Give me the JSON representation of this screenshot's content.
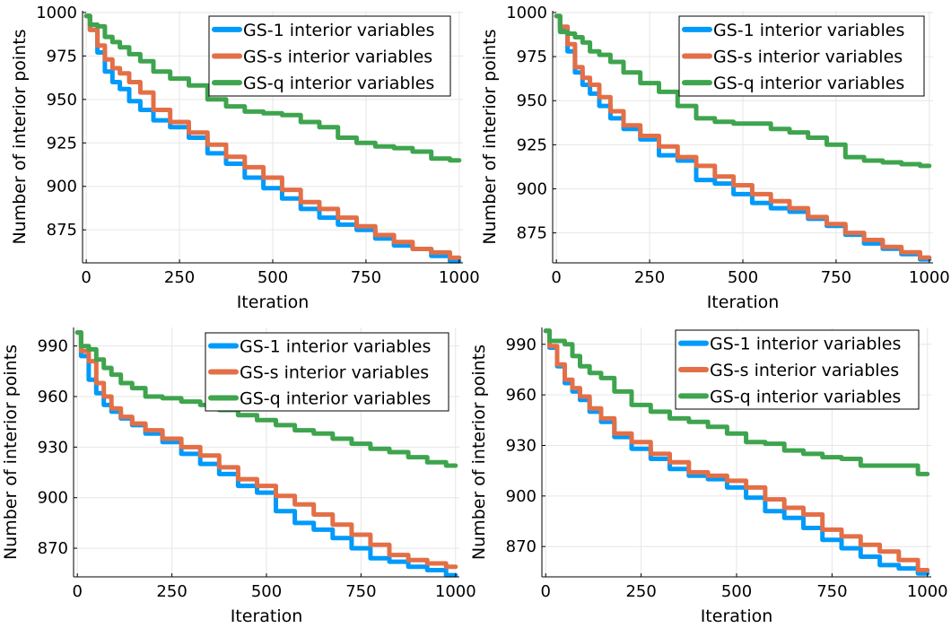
{
  "chart_data": [
    {
      "type": "line",
      "title": "",
      "xlabel": "Iteration",
      "ylabel": "Number of interior points",
      "xlim": [
        -10,
        1010
      ],
      "ylim": [
        856,
        1001
      ],
      "xticks": [
        0,
        250,
        500,
        750,
        1000
      ],
      "xtick_labels": [
        "0",
        "250",
        "500",
        "750",
        "1000"
      ],
      "yticks": [
        875,
        900,
        925,
        950,
        975,
        1000
      ],
      "ytick_labels": [
        "875",
        "900",
        "925",
        "950",
        "975",
        "1000"
      ],
      "grid": true,
      "legend_position": "top-right",
      "series": [
        {
          "name": "GS-1 interior variables",
          "color": "#009AFA",
          "x": [
            0,
            20,
            40,
            60,
            80,
            100,
            130,
            160,
            200,
            250,
            300,
            350,
            400,
            450,
            500,
            550,
            600,
            650,
            700,
            750,
            800,
            850,
            900,
            950,
            1000
          ],
          "y": [
            998,
            990,
            977,
            966,
            960,
            956,
            949,
            944,
            938,
            934,
            928,
            919,
            913,
            905,
            899,
            893,
            887,
            882,
            878,
            875,
            870,
            866,
            864,
            860,
            857
          ]
        },
        {
          "name": "GS-s interior variables",
          "color": "#E36F47",
          "x": [
            0,
            20,
            40,
            60,
            80,
            100,
            130,
            160,
            200,
            250,
            300,
            350,
            400,
            450,
            500,
            550,
            600,
            650,
            700,
            750,
            800,
            850,
            900,
            950,
            1000
          ],
          "y": [
            998,
            990,
            981,
            973,
            968,
            965,
            960,
            954,
            944,
            937,
            931,
            924,
            917,
            911,
            905,
            898,
            891,
            887,
            882,
            877,
            872,
            868,
            864,
            862,
            859
          ]
        },
        {
          "name": "GS-q interior variables",
          "color": "#3EA44E",
          "x": [
            0,
            20,
            40,
            60,
            80,
            100,
            130,
            160,
            200,
            250,
            300,
            350,
            400,
            450,
            500,
            550,
            600,
            650,
            700,
            750,
            800,
            850,
            900,
            950,
            1000
          ],
          "y": [
            998,
            993,
            992,
            986,
            983,
            980,
            976,
            972,
            966,
            962,
            958,
            950,
            946,
            943,
            942,
            941,
            937,
            934,
            928,
            925,
            923,
            922,
            920,
            916,
            915
          ]
        }
      ]
    },
    {
      "type": "line",
      "title": "",
      "xlabel": "Iteration",
      "ylabel": "Number of interior points",
      "xlim": [
        -10,
        1010
      ],
      "ylim": [
        858,
        1001
      ],
      "xticks": [
        0,
        250,
        500,
        750,
        1000
      ],
      "xtick_labels": [
        "0",
        "250",
        "500",
        "750",
        "1000"
      ],
      "yticks": [
        875,
        900,
        925,
        950,
        975,
        1000
      ],
      "ytick_labels": [
        "875",
        "900",
        "925",
        "950",
        "975",
        "1000"
      ],
      "grid": true,
      "legend_position": "top-right",
      "series": [
        {
          "name": "GS-1 interior variables",
          "color": "#009AFA",
          "x": [
            0,
            20,
            40,
            60,
            80,
            100,
            130,
            160,
            200,
            250,
            300,
            350,
            400,
            450,
            500,
            550,
            600,
            650,
            700,
            750,
            800,
            850,
            900,
            950,
            1000
          ],
          "y": [
            998,
            990,
            978,
            966,
            959,
            954,
            947,
            940,
            934,
            928,
            919,
            916,
            905,
            903,
            897,
            892,
            889,
            887,
            883,
            879,
            874,
            869,
            866,
            863,
            860
          ]
        },
        {
          "name": "GS-s interior variables",
          "color": "#E36F47",
          "x": [
            0,
            20,
            40,
            60,
            80,
            100,
            130,
            160,
            200,
            250,
            300,
            350,
            400,
            450,
            500,
            550,
            600,
            650,
            700,
            750,
            800,
            850,
            900,
            950,
            1000
          ],
          "y": [
            998,
            992,
            982,
            969,
            963,
            959,
            952,
            944,
            936,
            930,
            924,
            918,
            913,
            907,
            902,
            897,
            893,
            889,
            884,
            880,
            875,
            871,
            867,
            864,
            861
          ]
        },
        {
          "name": "GS-q interior variables",
          "color": "#3EA44E",
          "x": [
            0,
            20,
            40,
            60,
            80,
            100,
            130,
            160,
            200,
            250,
            300,
            350,
            400,
            450,
            500,
            550,
            600,
            650,
            700,
            750,
            800,
            850,
            900,
            950,
            1000
          ],
          "y": [
            998,
            989,
            988,
            986,
            983,
            978,
            976,
            972,
            966,
            960,
            955,
            947,
            940,
            938,
            937,
            937,
            934,
            932,
            929,
            925,
            918,
            916,
            915,
            914,
            913
          ]
        }
      ]
    },
    {
      "type": "line",
      "title": "",
      "xlabel": "Iteration",
      "ylabel": "Number of interior points",
      "xlim": [
        -10,
        1010
      ],
      "ylim": [
        853,
        1001
      ],
      "xticks": [
        0,
        250,
        500,
        750,
        1000
      ],
      "xtick_labels": [
        "0",
        "250",
        "500",
        "750",
        "1000"
      ],
      "yticks": [
        870,
        900,
        930,
        960,
        990
      ],
      "ytick_labels": [
        "870",
        "900",
        "930",
        "960",
        "990"
      ],
      "grid": true,
      "legend_position": "top-right",
      "series": [
        {
          "name": "GS-1 interior variables",
          "color": "#009AFA",
          "x": [
            0,
            20,
            40,
            60,
            80,
            100,
            130,
            160,
            200,
            250,
            300,
            350,
            400,
            450,
            500,
            550,
            600,
            650,
            700,
            750,
            800,
            850,
            900,
            950,
            1000
          ],
          "y": [
            998,
            984,
            970,
            962,
            955,
            951,
            947,
            943,
            938,
            933,
            926,
            920,
            914,
            907,
            903,
            892,
            885,
            881,
            876,
            870,
            864,
            862,
            859,
            857,
            854
          ]
        },
        {
          "name": "GS-s interior variables",
          "color": "#E36F47",
          "x": [
            0,
            20,
            40,
            60,
            80,
            100,
            130,
            160,
            200,
            250,
            300,
            350,
            400,
            450,
            500,
            550,
            600,
            650,
            700,
            750,
            800,
            850,
            900,
            950,
            1000
          ],
          "y": [
            998,
            987,
            981,
            968,
            960,
            953,
            948,
            944,
            940,
            935,
            930,
            925,
            918,
            911,
            907,
            901,
            896,
            890,
            884,
            878,
            872,
            866,
            863,
            861,
            859
          ]
        },
        {
          "name": "GS-q interior variables",
          "color": "#3EA44E",
          "x": [
            0,
            20,
            40,
            60,
            80,
            100,
            130,
            160,
            200,
            250,
            300,
            350,
            400,
            450,
            500,
            550,
            600,
            650,
            700,
            750,
            800,
            850,
            900,
            950,
            1000
          ],
          "y": [
            998,
            990,
            988,
            982,
            977,
            973,
            968,
            965,
            960,
            959,
            957,
            955,
            952,
            949,
            946,
            943,
            940,
            938,
            935,
            932,
            929,
            927,
            924,
            921,
            919
          ]
        }
      ]
    },
    {
      "type": "line",
      "title": "",
      "xlabel": "Iteration",
      "ylabel": "Number of interior points",
      "xlim": [
        -10,
        1010
      ],
      "ylim": [
        852,
        1000
      ],
      "xticks": [
        0,
        250,
        500,
        750,
        1000
      ],
      "xtick_labels": [
        "0",
        "250",
        "500",
        "750",
        "1000"
      ],
      "yticks": [
        870,
        900,
        930,
        960,
        990
      ],
      "ytick_labels": [
        "870",
        "900",
        "930",
        "960",
        "990"
      ],
      "grid": true,
      "legend_position": "top-right",
      "series": [
        {
          "name": "GS-1 interior variables",
          "color": "#009AFA",
          "x": [
            0,
            20,
            40,
            60,
            80,
            100,
            130,
            160,
            200,
            250,
            300,
            350,
            400,
            450,
            500,
            550,
            600,
            650,
            700,
            750,
            800,
            850,
            900,
            950,
            1000
          ],
          "y": [
            998,
            988,
            977,
            967,
            962,
            957,
            950,
            944,
            935,
            928,
            922,
            916,
            912,
            910,
            905,
            899,
            891,
            887,
            881,
            874,
            869,
            864,
            859,
            857,
            854
          ]
        },
        {
          "name": "GS-s interior variables",
          "color": "#E36F47",
          "x": [
            0,
            20,
            40,
            60,
            80,
            100,
            130,
            160,
            200,
            250,
            300,
            350,
            400,
            450,
            500,
            550,
            600,
            650,
            700,
            750,
            800,
            850,
            900,
            950,
            1000
          ],
          "y": [
            998,
            989,
            978,
            969,
            964,
            959,
            952,
            946,
            937,
            932,
            925,
            920,
            914,
            912,
            909,
            905,
            898,
            893,
            889,
            880,
            876,
            871,
            867,
            862,
            856
          ]
        },
        {
          "name": "GS-q interior variables",
          "color": "#3EA44E",
          "x": [
            0,
            20,
            40,
            60,
            80,
            100,
            130,
            160,
            200,
            250,
            300,
            350,
            400,
            450,
            500,
            550,
            600,
            650,
            700,
            750,
            800,
            850,
            900,
            950,
            1000
          ],
          "y": [
            998,
            992,
            992,
            990,
            983,
            977,
            973,
            970,
            962,
            954,
            950,
            946,
            944,
            941,
            937,
            932,
            931,
            927,
            925,
            923,
            922,
            918,
            918,
            918,
            913
          ]
        }
      ]
    }
  ]
}
